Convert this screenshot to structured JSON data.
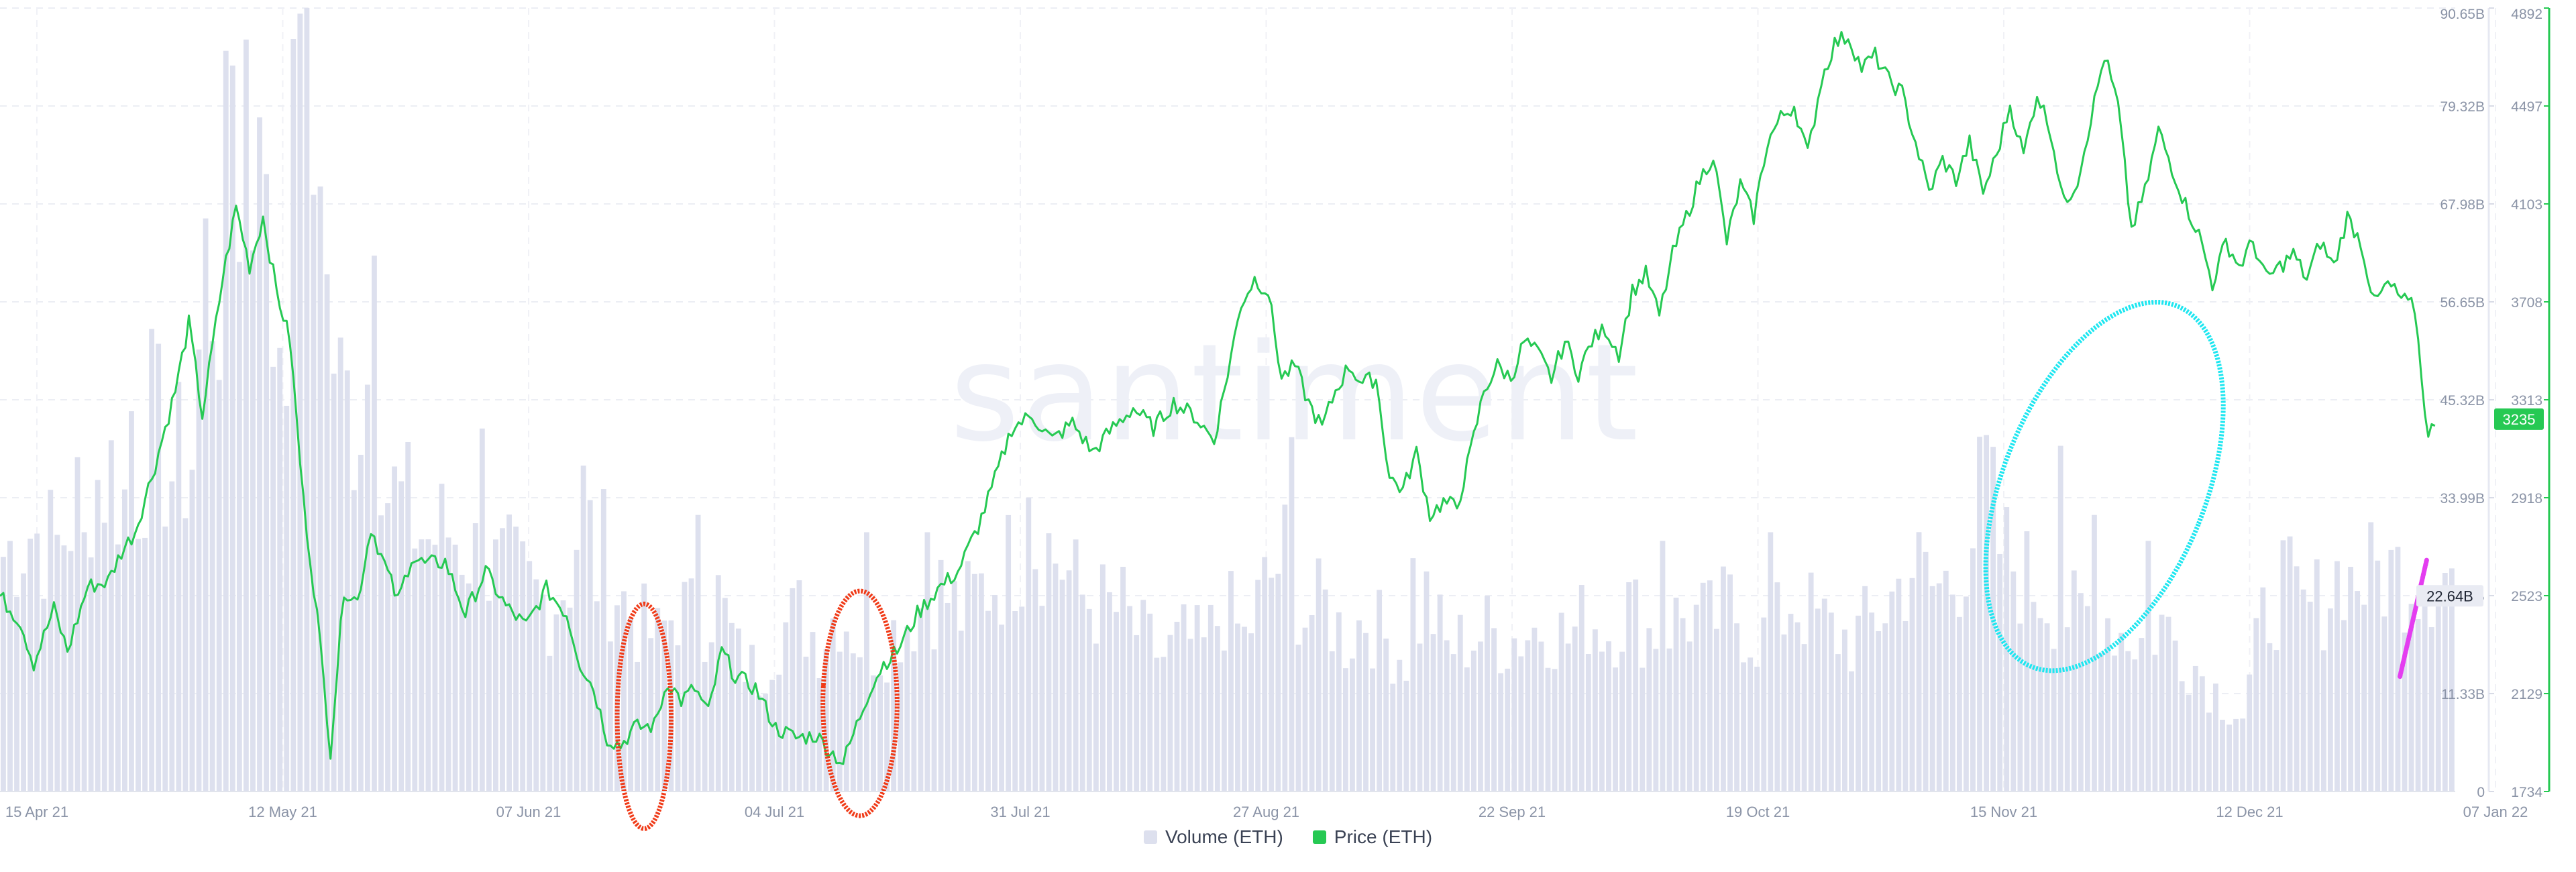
{
  "chart_data": {
    "type": "bar+line",
    "watermark": "santiment",
    "x_tick_labels": [
      "15 Apr 21",
      "12 May 21",
      "07 Jun 21",
      "04 Jul 21",
      "31 Jul 21",
      "27 Aug 21",
      "22 Sep 21",
      "19 Oct 21",
      "15 Nov 21",
      "12 Dec 21",
      "07 Jan 22"
    ],
    "volume_axis": {
      "ticks": [
        "0",
        "11.33B",
        "22.64B",
        "33.99B",
        "45.32B",
        "56.65B",
        "67.98B",
        "79.32B",
        "90.65B"
      ],
      "max": 90.65,
      "current_label": "22.64B"
    },
    "price_axis": {
      "ticks": [
        "1734",
        "2129",
        "2523",
        "2918",
        "3313",
        "3708",
        "4103",
        "4497",
        "4892"
      ],
      "min": 1734,
      "max": 4892,
      "current_label": "3235",
      "color": "#26c953"
    },
    "series": [
      {
        "name": "Volume (ETH)",
        "color": "#dde0ee",
        "anchors": [
          [
            0,
            28
          ],
          [
            4,
            31
          ],
          [
            8,
            29
          ],
          [
            12,
            36
          ],
          [
            16,
            38
          ],
          [
            19,
            33
          ],
          [
            22,
            44
          ],
          [
            25,
            38
          ],
          [
            28,
            40
          ],
          [
            30,
            62
          ],
          [
            32,
            60
          ],
          [
            34,
            78
          ],
          [
            36,
            70
          ],
          [
            38,
            72
          ],
          [
            40,
            55
          ],
          [
            42,
            60
          ],
          [
            44,
            84
          ],
          [
            46,
            72
          ],
          [
            48,
            58
          ],
          [
            50,
            47
          ],
          [
            52,
            45
          ],
          [
            55,
            52
          ],
          [
            57,
            36
          ],
          [
            60,
            33
          ],
          [
            63,
            30
          ],
          [
            66,
            31
          ],
          [
            69,
            29
          ],
          [
            72,
            26
          ],
          [
            75,
            26
          ],
          [
            78,
            24
          ],
          [
            81,
            22
          ],
          [
            84,
            26
          ],
          [
            86,
            35
          ],
          [
            88,
            26
          ],
          [
            91,
            24
          ],
          [
            94,
            20
          ],
          [
            97,
            18
          ],
          [
            100,
            22
          ],
          [
            103,
            20
          ],
          [
            106,
            23
          ],
          [
            109,
            16
          ],
          [
            112,
            14
          ],
          [
            115,
            19
          ],
          [
            118,
            21
          ],
          [
            121,
            18
          ],
          [
            124,
            22
          ],
          [
            127,
            18
          ],
          [
            130,
            17
          ],
          [
            133,
            20
          ],
          [
            136,
            22
          ],
          [
            139,
            24
          ],
          [
            142,
            21
          ],
          [
            145,
            24
          ],
          [
            148,
            26
          ],
          [
            151,
            29
          ],
          [
            154,
            30
          ],
          [
            157,
            27
          ],
          [
            160,
            23
          ],
          [
            163,
            22
          ],
          [
            166,
            21
          ],
          [
            169,
            18
          ],
          [
            172,
            16
          ],
          [
            175,
            18
          ],
          [
            178,
            17
          ],
          [
            181,
            22
          ],
          [
            184,
            18
          ],
          [
            187,
            24
          ],
          [
            190,
            28
          ],
          [
            193,
            21
          ],
          [
            196,
            22
          ],
          [
            199,
            18
          ],
          [
            202,
            21
          ],
          [
            205,
            18
          ],
          [
            208,
            16
          ],
          [
            211,
            23
          ],
          [
            214,
            17
          ],
          [
            217,
            18
          ],
          [
            220,
            19
          ],
          [
            223,
            18
          ],
          [
            226,
            19
          ],
          [
            229,
            20
          ],
          [
            232,
            18
          ],
          [
            235,
            21
          ],
          [
            238,
            19
          ],
          [
            241,
            22
          ],
          [
            244,
            19
          ],
          [
            247,
            20
          ],
          [
            250,
            21
          ],
          [
            253,
            20
          ],
          [
            256,
            22
          ],
          [
            259,
            19
          ],
          [
            262,
            18
          ],
          [
            265,
            23
          ],
          [
            268,
            21
          ],
          [
            271,
            19
          ],
          [
            274,
            18
          ],
          [
            277,
            20
          ],
          [
            280,
            23
          ],
          [
            283,
            27
          ],
          [
            286,
            24
          ],
          [
            289,
            25
          ],
          [
            292,
            31
          ],
          [
            294,
            37
          ],
          [
            296,
            29
          ],
          [
            299,
            26
          ],
          [
            302,
            24
          ],
          [
            305,
            22
          ],
          [
            308,
            20
          ],
          [
            311,
            22
          ],
          [
            314,
            19
          ],
          [
            317,
            18
          ],
          [
            320,
            20
          ],
          [
            323,
            17
          ],
          [
            326,
            14
          ],
          [
            329,
            11
          ],
          [
            332,
            9
          ],
          [
            335,
            20
          ],
          [
            338,
            25
          ],
          [
            341,
            21
          ],
          [
            344,
            23
          ],
          [
            347,
            27
          ],
          [
            350,
            25
          ],
          [
            352,
            26
          ]
        ],
        "spikes": [
          [
            12,
            30
          ],
          [
            19,
            44
          ],
          [
            34,
            84
          ],
          [
            36,
            87
          ],
          [
            38,
            78
          ],
          [
            44,
            90
          ],
          [
            47,
            70
          ],
          [
            55,
            62
          ],
          [
            71,
            42
          ],
          [
            89,
            35
          ],
          [
            103,
            32
          ],
          [
            128,
            30
          ],
          [
            137,
            30
          ],
          [
            152,
            34
          ],
          [
            166,
            26
          ],
          [
            191,
            41
          ],
          [
            209,
            27
          ],
          [
            246,
            29
          ],
          [
            262,
            30
          ],
          [
            305,
            40
          ],
          [
            310,
            32
          ],
          [
            318,
            29
          ],
          [
            348,
            26
          ]
        ],
        "current_value": 22.64
      },
      {
        "name": "Price (ETH)",
        "color": "#26c953",
        "anchors": [
          [
            0,
            2520
          ],
          [
            3,
            2420
          ],
          [
            5,
            2250
          ],
          [
            8,
            2470
          ],
          [
            10,
            2300
          ],
          [
            13,
            2560
          ],
          [
            16,
            2580
          ],
          [
            18,
            2700
          ],
          [
            20,
            2780
          ],
          [
            23,
            3050
          ],
          [
            26,
            3350
          ],
          [
            28,
            3620
          ],
          [
            30,
            3250
          ],
          [
            33,
            3800
          ],
          [
            35,
            4090
          ],
          [
            37,
            3850
          ],
          [
            39,
            4050
          ],
          [
            41,
            3750
          ],
          [
            43,
            3550
          ],
          [
            45,
            2900
          ],
          [
            47,
            2450
          ],
          [
            49,
            1900
          ],
          [
            51,
            2550
          ],
          [
            53,
            2500
          ],
          [
            55,
            2800
          ],
          [
            57,
            2650
          ],
          [
            59,
            2500
          ],
          [
            61,
            2680
          ],
          [
            63,
            2650
          ],
          [
            66,
            2660
          ],
          [
            69,
            2450
          ],
          [
            72,
            2620
          ],
          [
            75,
            2480
          ],
          [
            78,
            2400
          ],
          [
            81,
            2550
          ],
          [
            84,
            2450
          ],
          [
            86,
            2250
          ],
          [
            88,
            2150
          ],
          [
            90,
            1950
          ],
          [
            92,
            1920
          ],
          [
            94,
            1990
          ],
          [
            97,
            2000
          ],
          [
            99,
            2180
          ],
          [
            101,
            2100
          ],
          [
            103,
            2150
          ],
          [
            105,
            2050
          ],
          [
            107,
            2300
          ],
          [
            109,
            2200
          ],
          [
            112,
            2150
          ],
          [
            115,
            1990
          ],
          [
            118,
            1950
          ],
          [
            121,
            1960
          ],
          [
            123,
            1900
          ],
          [
            125,
            1850
          ],
          [
            127,
            2000
          ],
          [
            129,
            2150
          ],
          [
            131,
            2250
          ],
          [
            133,
            2300
          ],
          [
            136,
            2450
          ],
          [
            139,
            2550
          ],
          [
            142,
            2620
          ],
          [
            145,
            2800
          ],
          [
            147,
            2950
          ],
          [
            150,
            3200
          ],
          [
            153,
            3250
          ],
          [
            156,
            3150
          ],
          [
            159,
            3220
          ],
          [
            162,
            3100
          ],
          [
            165,
            3200
          ],
          [
            168,
            3280
          ],
          [
            171,
            3200
          ],
          [
            174,
            3300
          ],
          [
            177,
            3250
          ],
          [
            180,
            3150
          ],
          [
            182,
            3420
          ],
          [
            184,
            3700
          ],
          [
            186,
            3800
          ],
          [
            188,
            3750
          ],
          [
            190,
            3400
          ],
          [
            192,
            3450
          ],
          [
            194,
            3300
          ],
          [
            196,
            3200
          ],
          [
            198,
            3350
          ],
          [
            200,
            3450
          ],
          [
            202,
            3380
          ],
          [
            204,
            3400
          ],
          [
            206,
            3000
          ],
          [
            208,
            2950
          ],
          [
            210,
            3100
          ],
          [
            212,
            2850
          ],
          [
            214,
            2900
          ],
          [
            216,
            2880
          ],
          [
            218,
            3100
          ],
          [
            220,
            3350
          ],
          [
            222,
            3450
          ],
          [
            224,
            3400
          ],
          [
            226,
            3550
          ],
          [
            228,
            3500
          ],
          [
            230,
            3400
          ],
          [
            232,
            3550
          ],
          [
            234,
            3420
          ],
          [
            236,
            3550
          ],
          [
            238,
            3600
          ],
          [
            240,
            3500
          ],
          [
            242,
            3750
          ],
          [
            244,
            3820
          ],
          [
            246,
            3650
          ],
          [
            248,
            3900
          ],
          [
            250,
            4050
          ],
          [
            252,
            4200
          ],
          [
            254,
            4300
          ],
          [
            256,
            3950
          ],
          [
            258,
            4180
          ],
          [
            260,
            4050
          ],
          [
            262,
            4350
          ],
          [
            264,
            4450
          ],
          [
            266,
            4500
          ],
          [
            268,
            4300
          ],
          [
            270,
            4600
          ],
          [
            272,
            4750
          ],
          [
            274,
            4780
          ],
          [
            276,
            4650
          ],
          [
            278,
            4700
          ],
          [
            280,
            4600
          ],
          [
            282,
            4550
          ],
          [
            284,
            4350
          ],
          [
            286,
            4150
          ],
          [
            288,
            4280
          ],
          [
            290,
            4200
          ],
          [
            292,
            4350
          ],
          [
            294,
            4150
          ],
          [
            296,
            4300
          ],
          [
            298,
            4500
          ],
          [
            300,
            4300
          ],
          [
            302,
            4550
          ],
          [
            304,
            4400
          ],
          [
            306,
            4100
          ],
          [
            308,
            4200
          ],
          [
            310,
            4450
          ],
          [
            312,
            4700
          ],
          [
            314,
            4500
          ],
          [
            316,
            4000
          ],
          [
            318,
            4150
          ],
          [
            320,
            4400
          ],
          [
            322,
            4250
          ],
          [
            324,
            4100
          ],
          [
            326,
            3980
          ],
          [
            328,
            3780
          ],
          [
            330,
            3950
          ],
          [
            332,
            3850
          ],
          [
            334,
            3950
          ],
          [
            336,
            3800
          ],
          [
            338,
            3850
          ],
          [
            340,
            3900
          ],
          [
            342,
            3800
          ],
          [
            344,
            3950
          ],
          [
            346,
            3850
          ],
          [
            348,
            4050
          ],
          [
            350,
            3950
          ],
          [
            352,
            3700
          ],
          [
            354,
            3780
          ],
          [
            356,
            3720
          ],
          [
            358,
            3680
          ],
          [
            360,
            3150
          ],
          [
            361,
            3235
          ]
        ],
        "current_value": 3235
      }
    ],
    "xlim": [
      0,
      364
    ],
    "annotations": [
      {
        "shape": "ellipse",
        "color": "#f03a17",
        "x": 95.5,
        "y": 8.7,
        "rx": 4,
        "ry": 13
      },
      {
        "shape": "ellipse",
        "color": "#f03a17",
        "x": 127.5,
        "y": 10.2,
        "rx": 5.5,
        "ry": 13
      },
      {
        "shape": "ellipse",
        "color": "#1de6f0",
        "x": 312,
        "y": 35.3,
        "rx": 15,
        "ry": 22.5,
        "rotate": 22
      },
      {
        "shape": "line",
        "color": "#e43df0",
        "x0": 355.8,
        "y0": 13.3,
        "x1": 359.8,
        "y1": 26.9
      }
    ],
    "legend": [
      "Volume (ETH)",
      "Price (ETH)"
    ]
  }
}
